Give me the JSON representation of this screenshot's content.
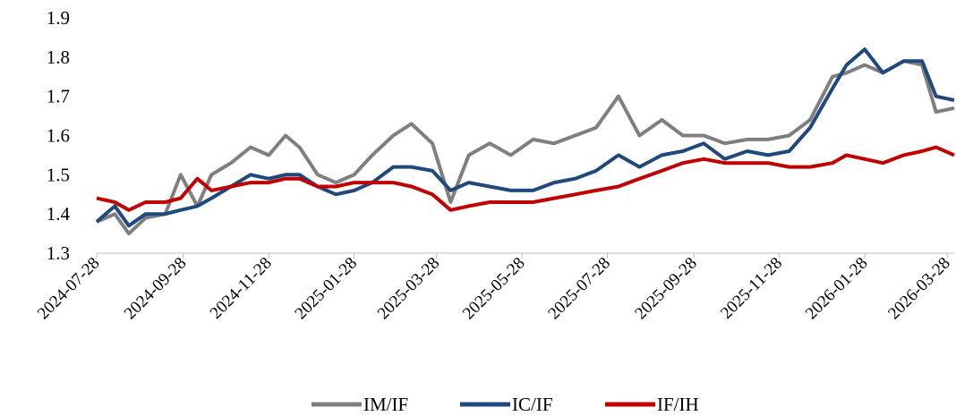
{
  "chart_data": {
    "type": "line",
    "x": [
      "2024-07-28",
      "2024-08-10",
      "2024-08-20",
      "2024-09-01",
      "2024-09-15",
      "2024-09-26",
      "2024-10-08",
      "2024-10-18",
      "2024-11-01",
      "2024-11-15",
      "2024-11-28",
      "2024-12-10",
      "2024-12-20",
      "2025-01-02",
      "2025-01-15",
      "2025-01-28",
      "2025-02-10",
      "2025-02-25",
      "2025-03-10",
      "2025-03-25",
      "2025-04-07",
      "2025-04-20",
      "2025-05-05",
      "2025-05-20",
      "2025-06-05",
      "2025-06-20",
      "2025-07-05",
      "2025-07-20",
      "2025-08-05",
      "2025-08-20",
      "2025-09-05",
      "2025-09-20",
      "2025-10-05",
      "2025-10-20",
      "2025-11-05",
      "2025-11-20",
      "2025-12-05",
      "2025-12-20",
      "2026-01-05",
      "2026-01-15",
      "2026-01-28",
      "2026-02-10",
      "2026-02-25",
      "2026-03-10",
      "2026-03-20",
      "2026-04-02"
    ],
    "series": [
      {
        "name": "IM/IF",
        "color": "#7f7f7f",
        "values": [
          1.38,
          1.4,
          1.35,
          1.39,
          1.4,
          1.5,
          1.42,
          1.5,
          1.53,
          1.57,
          1.55,
          1.6,
          1.57,
          1.5,
          1.48,
          1.5,
          1.55,
          1.6,
          1.63,
          1.58,
          1.43,
          1.55,
          1.58,
          1.55,
          1.59,
          1.58,
          1.6,
          1.62,
          1.7,
          1.6,
          1.64,
          1.6,
          1.6,
          1.58,
          1.59,
          1.59,
          1.6,
          1.64,
          1.75,
          1.76,
          1.78,
          1.76,
          1.79,
          1.78,
          1.66,
          1.67
        ]
      },
      {
        "name": "IC/IF",
        "color": "#1f497d",
        "values": [
          1.38,
          1.42,
          1.37,
          1.4,
          1.4,
          1.41,
          1.42,
          1.44,
          1.47,
          1.5,
          1.49,
          1.5,
          1.5,
          1.47,
          1.45,
          1.46,
          1.48,
          1.52,
          1.52,
          1.51,
          1.46,
          1.48,
          1.47,
          1.46,
          1.46,
          1.48,
          1.49,
          1.51,
          1.55,
          1.52,
          1.55,
          1.56,
          1.58,
          1.54,
          1.56,
          1.55,
          1.56,
          1.62,
          1.72,
          1.78,
          1.82,
          1.76,
          1.79,
          1.79,
          1.7,
          1.69
        ]
      },
      {
        "name": "IF/IH",
        "color": "#c00000",
        "values": [
          1.44,
          1.43,
          1.41,
          1.43,
          1.43,
          1.44,
          1.49,
          1.46,
          1.47,
          1.48,
          1.48,
          1.49,
          1.49,
          1.47,
          1.47,
          1.48,
          1.48,
          1.48,
          1.47,
          1.45,
          1.41,
          1.42,
          1.43,
          1.43,
          1.43,
          1.44,
          1.45,
          1.46,
          1.47,
          1.49,
          1.51,
          1.53,
          1.54,
          1.53,
          1.53,
          1.53,
          1.52,
          1.52,
          1.53,
          1.55,
          1.54,
          1.53,
          1.55,
          1.56,
          1.57,
          1.55
        ]
      }
    ],
    "xlim": [
      "2024-07-28",
      "2026-04-02"
    ],
    "xticks": [
      "2024-07-28",
      "2024-09-28",
      "2024-11-28",
      "2025-01-28",
      "2025-03-28",
      "2025-05-28",
      "2025-07-28",
      "2025-09-28",
      "2025-11-28",
      "2026-01-28",
      "2026-03-28"
    ],
    "ylim": [
      1.3,
      1.9
    ],
    "yticks": [
      1.3,
      1.4,
      1.5,
      1.6,
      1.7,
      1.8,
      1.9
    ],
    "legend": "bottom"
  }
}
